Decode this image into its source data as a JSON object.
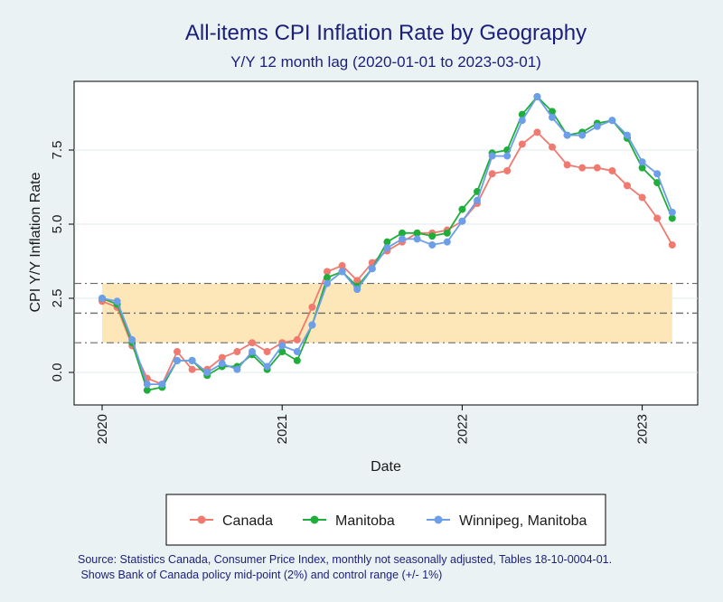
{
  "chart_data": {
    "type": "line",
    "title": "All-items CPI Inflation Rate by Geography",
    "subtitle": "Y/Y 12 month lag (2020-01-01 to 2023-03-01)",
    "xlabel": "Date",
    "ylabel": "CPI Y/Y Inflation Rate",
    "x_ticks": [
      "2020",
      "2021",
      "2022",
      "2023"
    ],
    "y_ticks": [
      "0.0",
      "2.5",
      "5.0",
      "7.5"
    ],
    "ylim": [
      -1.1,
      9.8
    ],
    "grid": true,
    "legend_position": "bottom",
    "policy_band": {
      "midpoint": 2,
      "lower": 1,
      "upper": 3
    },
    "x": [
      "2020-01",
      "2020-02",
      "2020-03",
      "2020-04",
      "2020-05",
      "2020-06",
      "2020-07",
      "2020-08",
      "2020-09",
      "2020-10",
      "2020-11",
      "2020-12",
      "2021-01",
      "2021-02",
      "2021-03",
      "2021-04",
      "2021-05",
      "2021-06",
      "2021-07",
      "2021-08",
      "2021-09",
      "2021-10",
      "2021-11",
      "2021-12",
      "2022-01",
      "2022-02",
      "2022-03",
      "2022-04",
      "2022-05",
      "2022-06",
      "2022-07",
      "2022-08",
      "2022-09",
      "2022-10",
      "2022-11",
      "2022-12",
      "2023-01",
      "2023-02",
      "2023-03"
    ],
    "series": [
      {
        "name": "Canada",
        "color": "#f07a70",
        "values": [
          2.4,
          2.2,
          0.9,
          -0.2,
          -0.4,
          0.7,
          0.1,
          0.1,
          0.5,
          0.7,
          1.0,
          0.7,
          1.0,
          1.1,
          2.2,
          3.4,
          3.6,
          3.1,
          3.7,
          4.1,
          4.4,
          4.7,
          4.7,
          4.8,
          5.1,
          5.7,
          6.7,
          6.8,
          7.7,
          8.1,
          7.6,
          7.0,
          6.9,
          6.9,
          6.8,
          6.3,
          5.9,
          5.2,
          4.3
        ]
      },
      {
        "name": "Manitoba",
        "color": "#1fae3a",
        "values": [
          2.5,
          2.3,
          1.0,
          -0.6,
          -0.5,
          0.4,
          0.4,
          -0.1,
          0.2,
          0.2,
          0.6,
          0.1,
          0.7,
          0.4,
          1.6,
          3.2,
          3.4,
          2.9,
          3.5,
          4.4,
          4.7,
          4.7,
          4.6,
          4.7,
          5.5,
          6.1,
          7.4,
          7.5,
          8.7,
          9.3,
          8.8,
          8.0,
          8.1,
          8.4,
          8.5,
          7.9,
          6.9,
          6.4,
          5.2
        ]
      },
      {
        "name": "Winnipeg, Manitoba",
        "color": "#6c9eea",
        "values": [
          2.5,
          2.4,
          1.1,
          -0.4,
          -0.4,
          0.4,
          0.4,
          0.0,
          0.3,
          0.1,
          0.7,
          0.2,
          0.9,
          0.7,
          1.6,
          3.0,
          3.4,
          2.8,
          3.5,
          4.2,
          4.5,
          4.5,
          4.3,
          4.4,
          5.1,
          5.8,
          7.3,
          7.3,
          8.5,
          9.3,
          8.6,
          8.0,
          8.0,
          8.3,
          8.5,
          8.0,
          7.1,
          6.7,
          5.4
        ]
      }
    ]
  },
  "legend_items": [
    "Canada",
    "Manitoba",
    "Winnipeg, Manitoba"
  ],
  "note": "Source: Statistics Canada, Consumer Price Index, monthly not seasonally adjusted, Tables 18-10-0004-01.\n Shows Bank of Canada policy mid-point (2%) and control range (+/- 1%)",
  "colors": {
    "background": "#eaf2f3",
    "plot_background": "#ffffff",
    "title": "#1a1f7a",
    "band": "#fde7b8",
    "policy_line": "#6a6a6a"
  }
}
